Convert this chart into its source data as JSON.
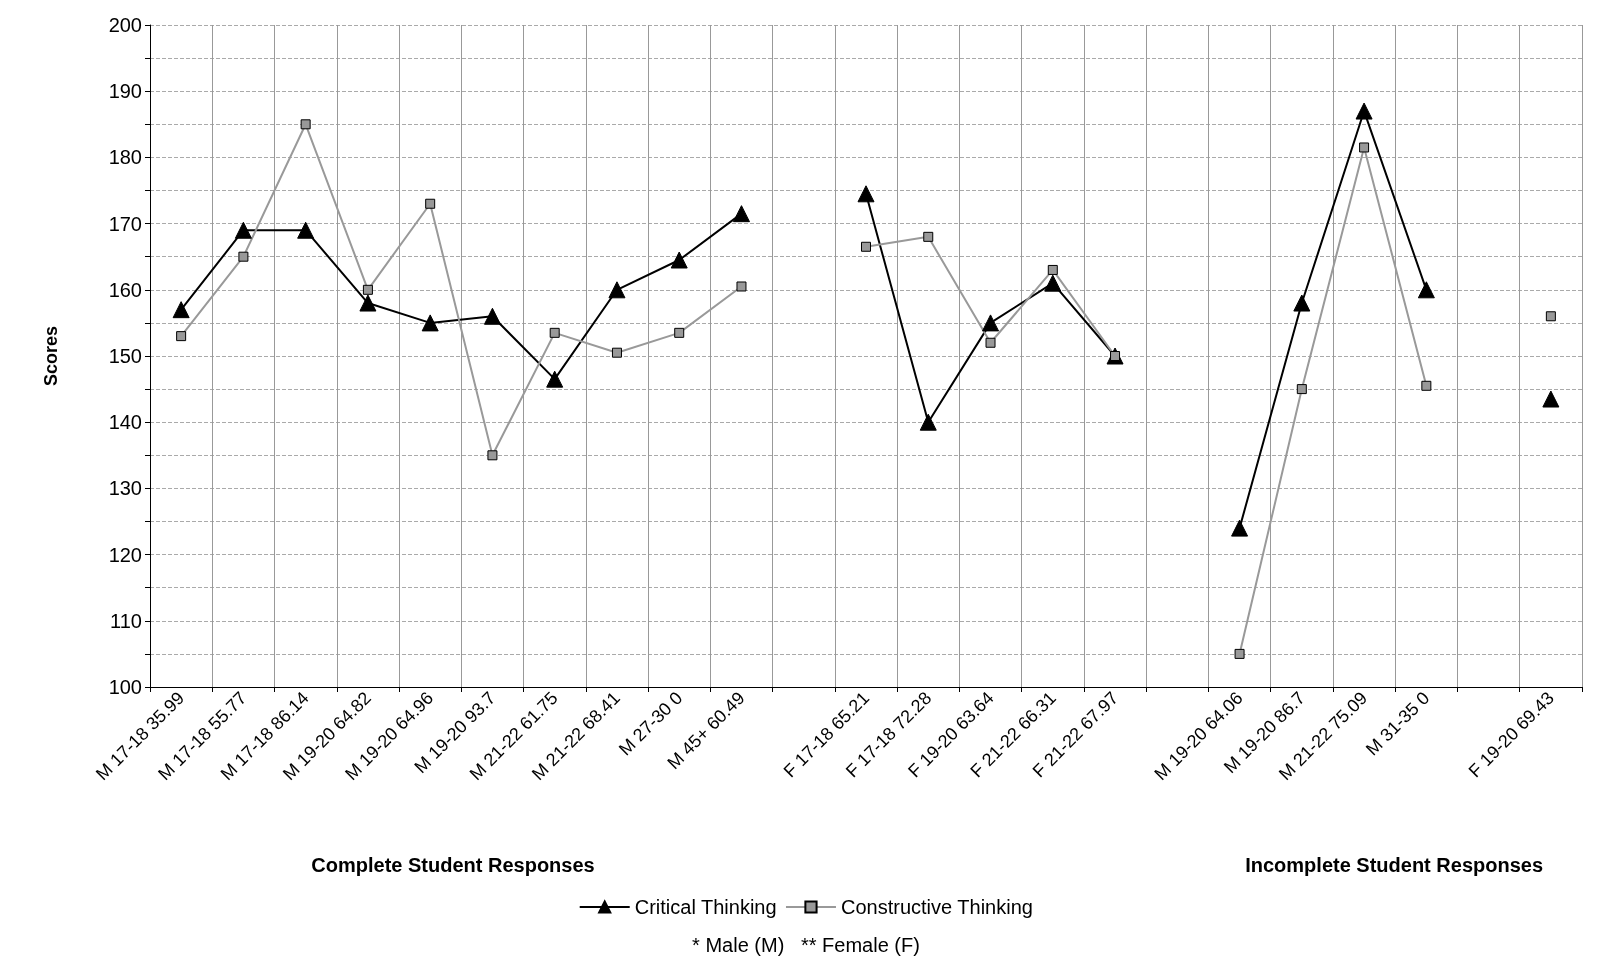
{
  "chart_data": {
    "type": "line",
    "ylabel": "Scores",
    "categories": [
      "M 17-18 35.99",
      "M 17-18 55.77",
      "M 17-18 86.14",
      "M 19-20 64.82",
      "M 19-20 64.96",
      "M 19-20 93.7",
      "M 21-22 61.75",
      "M 21-22 68.41",
      "M 27-30 0",
      "M 45+ 60.49",
      null,
      "F 17-18 65.21",
      "F 17-18 72.28",
      "F 19-20 63.64",
      "F 21-22 66.31",
      "F 21-22 67.97",
      null,
      "M 19-20 64.06",
      "M 19-20 86.7",
      "M 21-22 75.09",
      "M 31-35 0",
      null,
      "F 19-20 69.43"
    ],
    "series": [
      {
        "name": "Critical Thinking",
        "color": "#000000",
        "marker": "triangle",
        "values": [
          157,
          169,
          169,
          158,
          155,
          156,
          146.5,
          160,
          164.5,
          171.5,
          null,
          174.5,
          140,
          155,
          161,
          150,
          null,
          124,
          158,
          187,
          160,
          null,
          143.5
        ]
      },
      {
        "name": "Constructive Thinking",
        "color": "#999999",
        "marker": "square",
        "values": [
          153,
          165,
          185,
          160,
          173,
          135,
          153.5,
          150.5,
          153.5,
          160.5,
          null,
          166.5,
          168,
          152,
          163,
          150,
          null,
          105,
          145,
          181.5,
          145.5,
          null,
          156
        ]
      }
    ],
    "ylim": [
      100,
      200
    ],
    "yticks": [
      100,
      {
        "value": 105,
        "label": null
      },
      110,
      {
        "value": 115,
        "label": null
      },
      120,
      {
        "value": 125,
        "label": null
      },
      130,
      {
        "value": 135,
        "label": null
      },
      140,
      {
        "value": 145,
        "label": null
      },
      150,
      {
        "value": 155,
        "label": null
      },
      160,
      {
        "value": 165,
        "label": null
      },
      170,
      {
        "value": 175,
        "label": null
      },
      180,
      {
        "value": 185,
        "label": null
      },
      190,
      {
        "value": 195,
        "label": null
      },
      200
    ],
    "grid": true,
    "legend": "bottom",
    "annotations": [
      "Complete Student Responses",
      "Incomplete Student Responses",
      "* Male (M)   ** Female (F)"
    ]
  }
}
